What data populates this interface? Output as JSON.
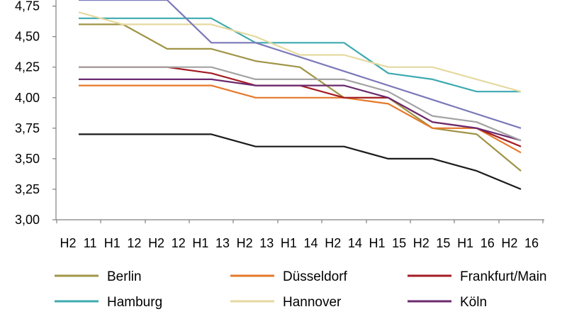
{
  "chart_data": {
    "type": "line",
    "categories": [
      "H2 11",
      "H1 12",
      "H2 12",
      "H1 13",
      "H2 13",
      "H1 14",
      "H2 14",
      "H1 15",
      "H2 15",
      "H1 16",
      "H2 16"
    ],
    "x_tick_labels": [
      "H2",
      "11",
      "H1",
      "12",
      "H2",
      "12",
      "H1",
      "13",
      "H2",
      "13",
      "H1",
      "14",
      "H2",
      "14",
      "H1",
      "15",
      "H2",
      "15",
      "H1",
      "16",
      "H2",
      "16"
    ],
    "y_tick_labels": [
      "3,00",
      "3,25",
      "3,50",
      "3,75",
      "4,00",
      "4,25",
      "4,50",
      "4,75"
    ],
    "ylim": [
      3.0,
      4.8
    ],
    "y_ticks": [
      3.0,
      3.25,
      3.5,
      3.75,
      4.0,
      4.25,
      4.5,
      4.75
    ],
    "legend_position": "bottom",
    "grid": false,
    "series": [
      {
        "name": "Berlin",
        "color": "#a09447",
        "x": [
          0,
          1,
          2,
          3,
          4,
          5,
          6,
          7,
          8,
          9,
          10
        ],
        "values": [
          4.6,
          4.6,
          4.4,
          4.4,
          4.3,
          4.25,
          4.0,
          4.0,
          3.75,
          3.7,
          3.4
        ]
      },
      {
        "name": "Düsseldorf",
        "color": "#e5782a",
        "x": [
          0,
          1,
          2,
          3,
          4,
          5,
          6,
          7,
          8,
          9,
          10
        ],
        "values": [
          4.1,
          4.1,
          4.1,
          4.1,
          4.0,
          4.0,
          4.0,
          3.95,
          3.75,
          3.75,
          3.55
        ]
      },
      {
        "name": "Frankfurt/Main",
        "color": "#a51c24",
        "x": [
          0,
          1,
          2,
          3,
          4,
          5,
          6,
          7,
          8,
          9,
          10
        ],
        "values": [
          4.25,
          4.25,
          4.25,
          4.2,
          4.1,
          4.1,
          4.0,
          4.0,
          3.8,
          3.75,
          3.6
        ]
      },
      {
        "name": "Hamburg",
        "color": "#3daab0",
        "x": [
          0,
          1,
          2,
          3,
          4,
          5,
          6,
          7,
          8,
          9,
          10
        ],
        "values": [
          4.65,
          4.65,
          4.65,
          4.65,
          4.45,
          4.45,
          4.45,
          4.2,
          4.15,
          4.05,
          4.05
        ]
      },
      {
        "name": "Hannover",
        "color": "#e5d9a0",
        "x": [
          0,
          1,
          2,
          3,
          4,
          5,
          6,
          7,
          8,
          9,
          10
        ],
        "values": [
          4.7,
          4.6,
          4.6,
          4.6,
          4.5,
          4.35,
          4.35,
          4.25,
          4.25,
          4.15,
          4.05
        ]
      },
      {
        "name": "Köln",
        "color": "#6b2a6e",
        "x": [
          0,
          1,
          2,
          3,
          4,
          5,
          6,
          7,
          8,
          9,
          10
        ],
        "values": [
          4.15,
          4.15,
          4.15,
          4.15,
          4.1,
          4.1,
          4.1,
          4.0,
          3.8,
          3.75,
          3.65
        ]
      },
      {
        "name": "",
        "color": "#a3a3a3",
        "x": [
          0,
          1,
          2,
          3,
          4,
          5,
          6,
          7,
          8,
          9,
          10
        ],
        "values": [
          4.25,
          4.25,
          4.25,
          4.25,
          4.15,
          4.15,
          4.15,
          4.05,
          3.85,
          3.8,
          3.65
        ]
      },
      {
        "name": "",
        "color": "#7b78b9",
        "x": [
          0,
          2,
          3,
          4,
          10
        ],
        "values": [
          4.8,
          4.8,
          4.45,
          4.45,
          3.75
        ]
      },
      {
        "name": "",
        "color": "#1a1a1a",
        "x": [
          0,
          1,
          2,
          3,
          4,
          5,
          6,
          7,
          8,
          9,
          10
        ],
        "values": [
          3.7,
          3.7,
          3.7,
          3.7,
          3.6,
          3.6,
          3.6,
          3.5,
          3.5,
          3.4,
          3.25
        ]
      }
    ],
    "legend": [
      {
        "name": "Berlin",
        "color": "#a09447"
      },
      {
        "name": "Düsseldorf",
        "color": "#e5782a"
      },
      {
        "name": "Frankfurt/Main",
        "color": "#a51c24"
      },
      {
        "name": "Hamburg",
        "color": "#3daab0"
      },
      {
        "name": "Hannover",
        "color": "#e5d9a0"
      },
      {
        "name": "Köln",
        "color": "#6b2a6e"
      }
    ]
  }
}
